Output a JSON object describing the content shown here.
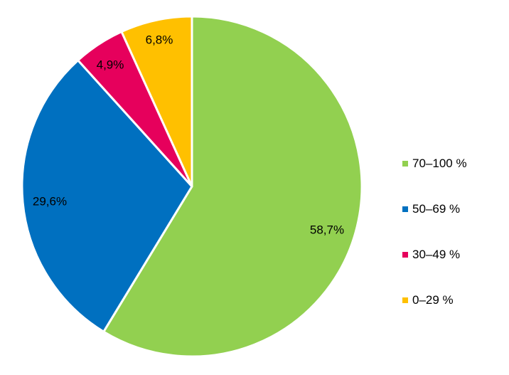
{
  "chart_data": {
    "type": "pie",
    "start_angle_deg": 0,
    "direction": "clockwise",
    "legend_position": "right",
    "slices": [
      {
        "name": "70–100 %",
        "value": 58.7,
        "label": "58,7%",
        "color": "#92d050"
      },
      {
        "name": "50–69 %",
        "value": 29.6,
        "label": "29,6%",
        "color": "#0070c0"
      },
      {
        "name": "30–49 %",
        "value": 4.9,
        "label": "4,9%",
        "color": "#e6005c"
      },
      {
        "name": "0–29 %",
        "value": 6.8,
        "label": "6,8%",
        "color": "#ffc000"
      }
    ]
  }
}
